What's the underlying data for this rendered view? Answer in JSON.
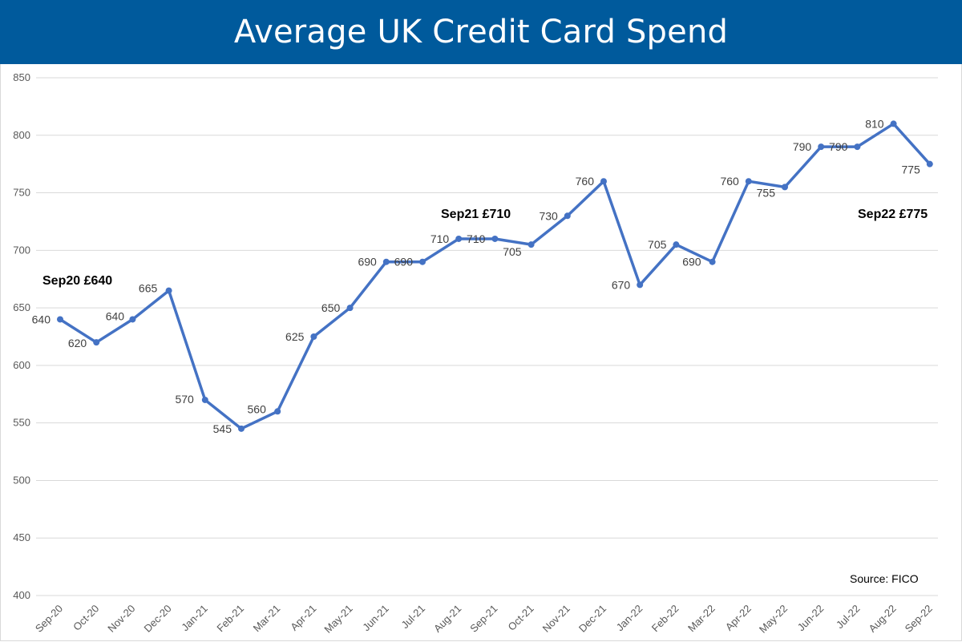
{
  "header": {
    "title": "Average UK Credit Card Spend"
  },
  "chart_data": {
    "type": "line",
    "title": "Average UK Credit Card Spend",
    "categories": [
      "Sep-20",
      "Oct-20",
      "Nov-20",
      "Dec-20",
      "Jan-21",
      "Feb-21",
      "Mar-21",
      "Apr-21",
      "May-21",
      "Jun-21",
      "Jul-21",
      "Aug-21",
      "Sep-21",
      "Oct-21",
      "Nov-21",
      "Dec-21",
      "Jan-22",
      "Feb-22",
      "Mar-22",
      "Apr-22",
      "May-22",
      "Jun-22",
      "Jul-22",
      "Aug-22",
      "Sep-22"
    ],
    "values": [
      640,
      620,
      640,
      665,
      570,
      545,
      560,
      625,
      650,
      690,
      690,
      710,
      710,
      705,
      730,
      760,
      670,
      705,
      690,
      760,
      755,
      790,
      790,
      810,
      775
    ],
    "yticks": [
      "400",
      "450",
      "500",
      "550",
      "600",
      "650",
      "700",
      "750",
      "800",
      "850"
    ],
    "ylim": [
      400,
      850
    ],
    "grid": true,
    "line_color": "#4472c4",
    "annotations": [
      {
        "text": "Sep20 £640",
        "index": 0
      },
      {
        "text": "Sep21 £710",
        "index": 12
      },
      {
        "text": "Sep22 £775",
        "index": 24
      }
    ],
    "source": "Source: FICO"
  },
  "colors": {
    "title_bar": "#005a9c",
    "line": "#4472c4",
    "grid": "#d9d9d9"
  }
}
